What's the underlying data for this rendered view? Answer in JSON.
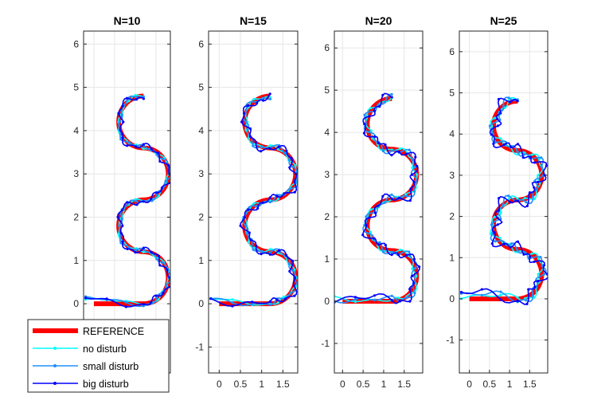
{
  "chart_data": [
    {
      "type": "line",
      "title": "N=10",
      "xlim": [
        -0.25,
        1.85
      ],
      "ylim": [
        -1.6,
        6.3
      ],
      "xticks": [],
      "yticks": [
        0,
        1,
        2,
        3,
        4,
        5,
        6
      ],
      "xtick_labels": [],
      "ytick_labels": [
        "0",
        "1",
        "2",
        "3",
        "4",
        "5",
        "6"
      ],
      "grid": true,
      "deviation": [
        0.03,
        0.05,
        0.07
      ]
    },
    {
      "type": "line",
      "title": "N=15",
      "xlim": [
        -0.25,
        1.85
      ],
      "ylim": [
        -1.6,
        6.3
      ],
      "xticks": [
        0,
        0.5,
        1,
        1.5
      ],
      "yticks": [
        -1,
        0,
        1,
        2,
        3,
        4,
        5,
        6
      ],
      "xtick_labels": [
        "0",
        "0.5",
        "1",
        "1.5"
      ],
      "ytick_labels": [
        "-1",
        "0",
        "1",
        "2",
        "3",
        "4",
        "5",
        "6"
      ],
      "grid": true,
      "deviation": [
        0.04,
        0.06,
        0.08
      ]
    },
    {
      "type": "line",
      "title": "N=20",
      "xlim": [
        -0.2,
        1.95
      ],
      "ylim": [
        -1.7,
        6.4
      ],
      "xticks": [
        0,
        0.5,
        1,
        1.5
      ],
      "yticks": [
        -1,
        0,
        1,
        2,
        3,
        4,
        5,
        6
      ],
      "xtick_labels": [
        "0",
        "0.5",
        "1",
        "1.5"
      ],
      "ytick_labels": [
        "-1",
        "0",
        "1",
        "2",
        "3",
        "4",
        "5",
        "6"
      ],
      "grid": true,
      "deviation": [
        0.05,
        0.08,
        0.1
      ]
    },
    {
      "type": "line",
      "title": "N=25",
      "xlim": [
        -0.25,
        1.95
      ],
      "ylim": [
        -1.8,
        6.5
      ],
      "xticks": [
        0,
        0.5,
        1,
        1.5
      ],
      "yticks": [
        -1,
        0,
        1,
        2,
        3,
        4,
        5,
        6
      ],
      "xtick_labels": [
        "0",
        "0.5",
        "1",
        "1.5"
      ],
      "ytick_labels": [
        "-1",
        "0",
        "1",
        "2",
        "3",
        "4",
        "5",
        "6"
      ],
      "grid": true,
      "deviation": [
        0.07,
        0.1,
        0.13
      ]
    }
  ],
  "series": [
    {
      "name": "REFERENCE",
      "color": "#ff0000",
      "marker": "none"
    },
    {
      "name": "no disturb",
      "color": "#00ffff",
      "marker": "dot"
    },
    {
      "name": "small disturb",
      "color": "#1e90ff",
      "marker": "dot"
    },
    {
      "name": "big disturb",
      "color": "#0000ff",
      "marker": "dot"
    }
  ],
  "legend": {
    "placement": "bottom-left"
  }
}
